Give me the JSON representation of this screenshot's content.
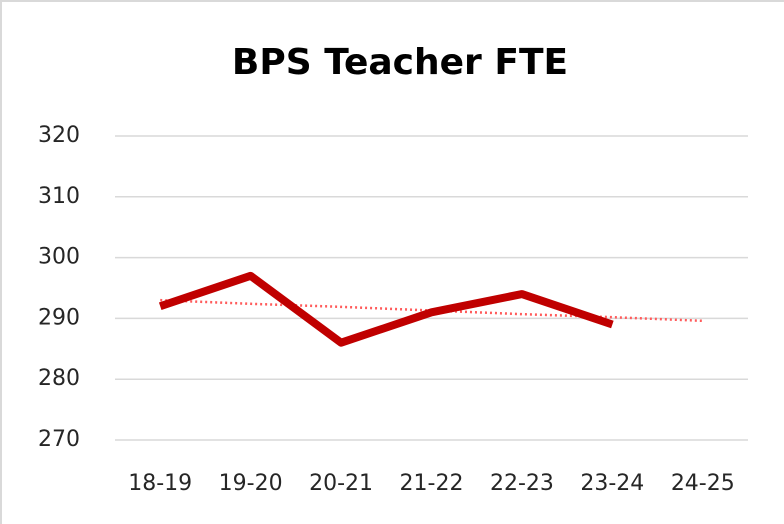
{
  "chart_data": {
    "type": "line",
    "title": "BPS Teacher FTE",
    "categories": [
      "18-19",
      "19-20",
      "20-21",
      "21-22",
      "22-23",
      "23-24",
      "24-25"
    ],
    "series": [
      {
        "color": "#c00000",
        "values": [
          292,
          297,
          286,
          291,
          294,
          289,
          null
        ]
      }
    ],
    "trendline": {
      "color": "#ff5b5b",
      "style": "dotted",
      "values": [
        293.0,
        292.4,
        291.9,
        291.3,
        290.7,
        290.2,
        289.6
      ]
    },
    "ylim": [
      270,
      320
    ],
    "yticks": [
      270,
      280,
      290,
      300,
      310,
      320
    ],
    "grid": true
  }
}
